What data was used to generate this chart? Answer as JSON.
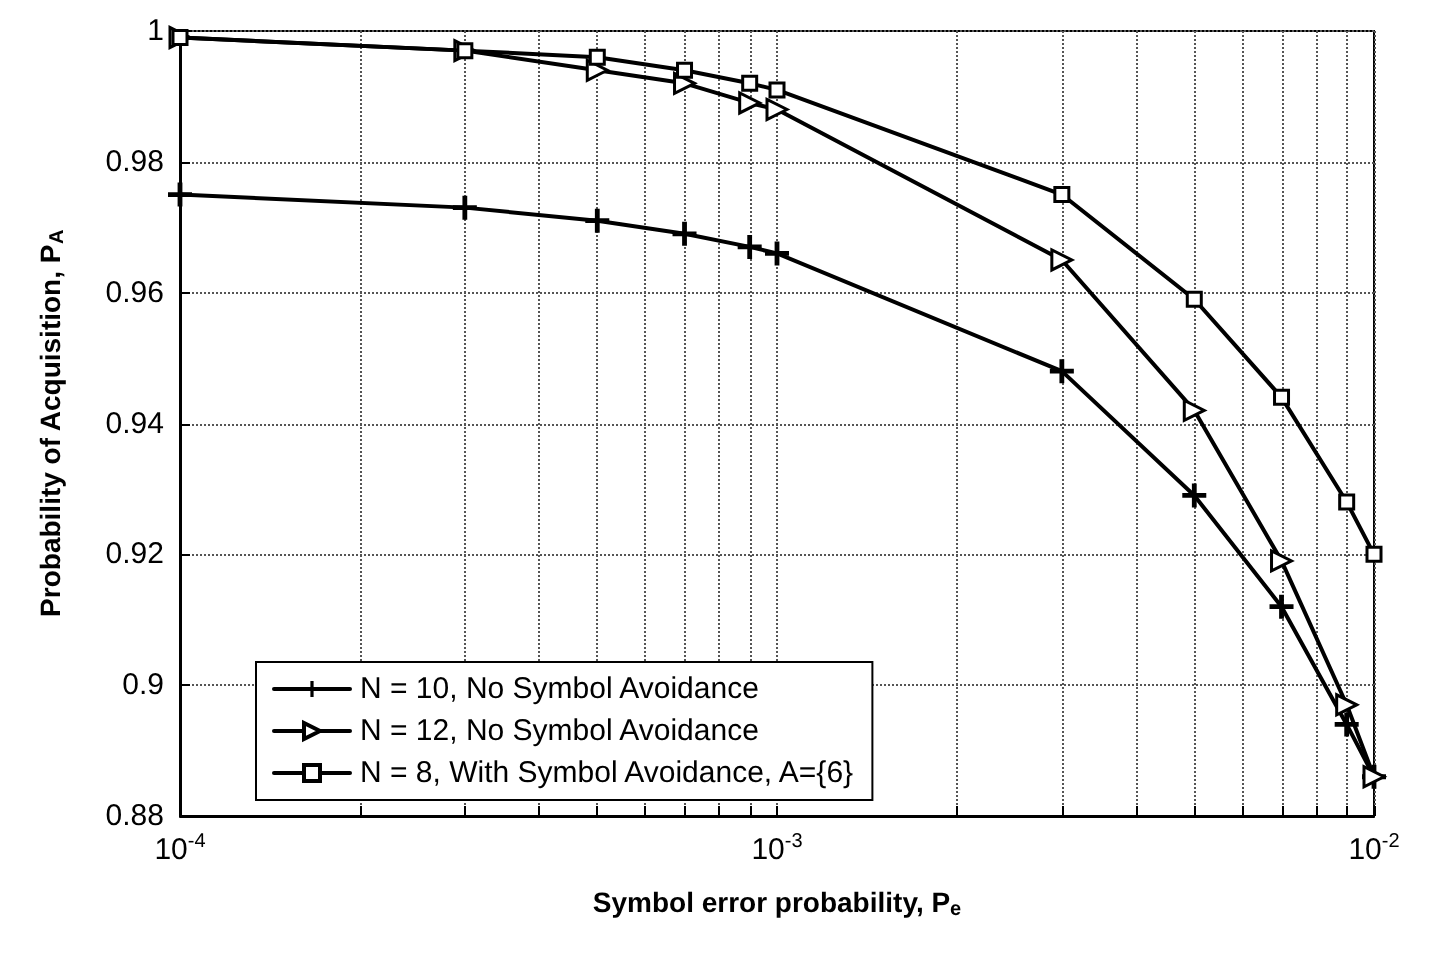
{
  "chart_data": {
    "type": "line",
    "xlabel": "Symbol error probability, P$_{e}$",
    "ylabel": "Probability of Acquisition, P$_{A}$",
    "x": [
      0.0001,
      0.0003,
      0.0005,
      0.0007,
      0.0009,
      0.001,
      0.003,
      0.005,
      0.007,
      0.009,
      0.01
    ],
    "series": [
      {
        "name": "N = 10, No Symbol Avoidance",
        "color": "#000000",
        "marker": "cross",
        "values": [
          0.975,
          0.973,
          0.971,
          0.969,
          0.967,
          0.966,
          0.948,
          0.929,
          0.912,
          0.894,
          0.886
        ]
      },
      {
        "name": "N = 12, No Symbol Avoidance",
        "color": "#000000",
        "marker": "triangle",
        "values": [
          0.999,
          0.997,
          0.994,
          0.992,
          0.989,
          0.988,
          0.965,
          0.942,
          0.919,
          0.897,
          0.886
        ]
      },
      {
        "name": "N = 8, With Symbol Avoidance, A={6}",
        "color": "#000000",
        "marker": "square",
        "values": [
          0.999,
          0.997,
          0.996,
          0.994,
          0.992,
          0.991,
          0.975,
          0.959,
          0.944,
          0.928,
          0.92
        ]
      }
    ],
    "log": "x",
    "xlim": [
      0.0001,
      0.01
    ],
    "xticks": [
      {
        "value": 0.0001,
        "label": "10$^{-4}$"
      },
      {
        "value": 0.0002,
        "label": null
      },
      {
        "value": 0.0003,
        "label": null
      },
      {
        "value": 0.0004,
        "label": null
      },
      {
        "value": 0.0005,
        "label": null
      },
      {
        "value": 0.0006,
        "label": null
      },
      {
        "value": 0.0007,
        "label": null
      },
      {
        "value": 0.0008,
        "label": null
      },
      {
        "value": 0.0009,
        "label": null
      },
      {
        "value": 0.001,
        "label": "10$^{-3}$"
      },
      {
        "value": 0.002,
        "label": null
      },
      {
        "value": 0.003,
        "label": null
      },
      {
        "value": 0.004,
        "label": null
      },
      {
        "value": 0.005,
        "label": null
      },
      {
        "value": 0.006,
        "label": null
      },
      {
        "value": 0.007,
        "label": null
      },
      {
        "value": 0.008,
        "label": null
      },
      {
        "value": 0.009,
        "label": null
      },
      {
        "value": 0.01,
        "label": "10$^{-2}$"
      }
    ],
    "ylim": [
      0.88,
      1
    ],
    "yticks": [
      0.88,
      0.9,
      0.92,
      0.94,
      0.96,
      0.98,
      1
    ],
    "grid": true,
    "legend": "bottom left",
    "line_style": "solid"
  }
}
